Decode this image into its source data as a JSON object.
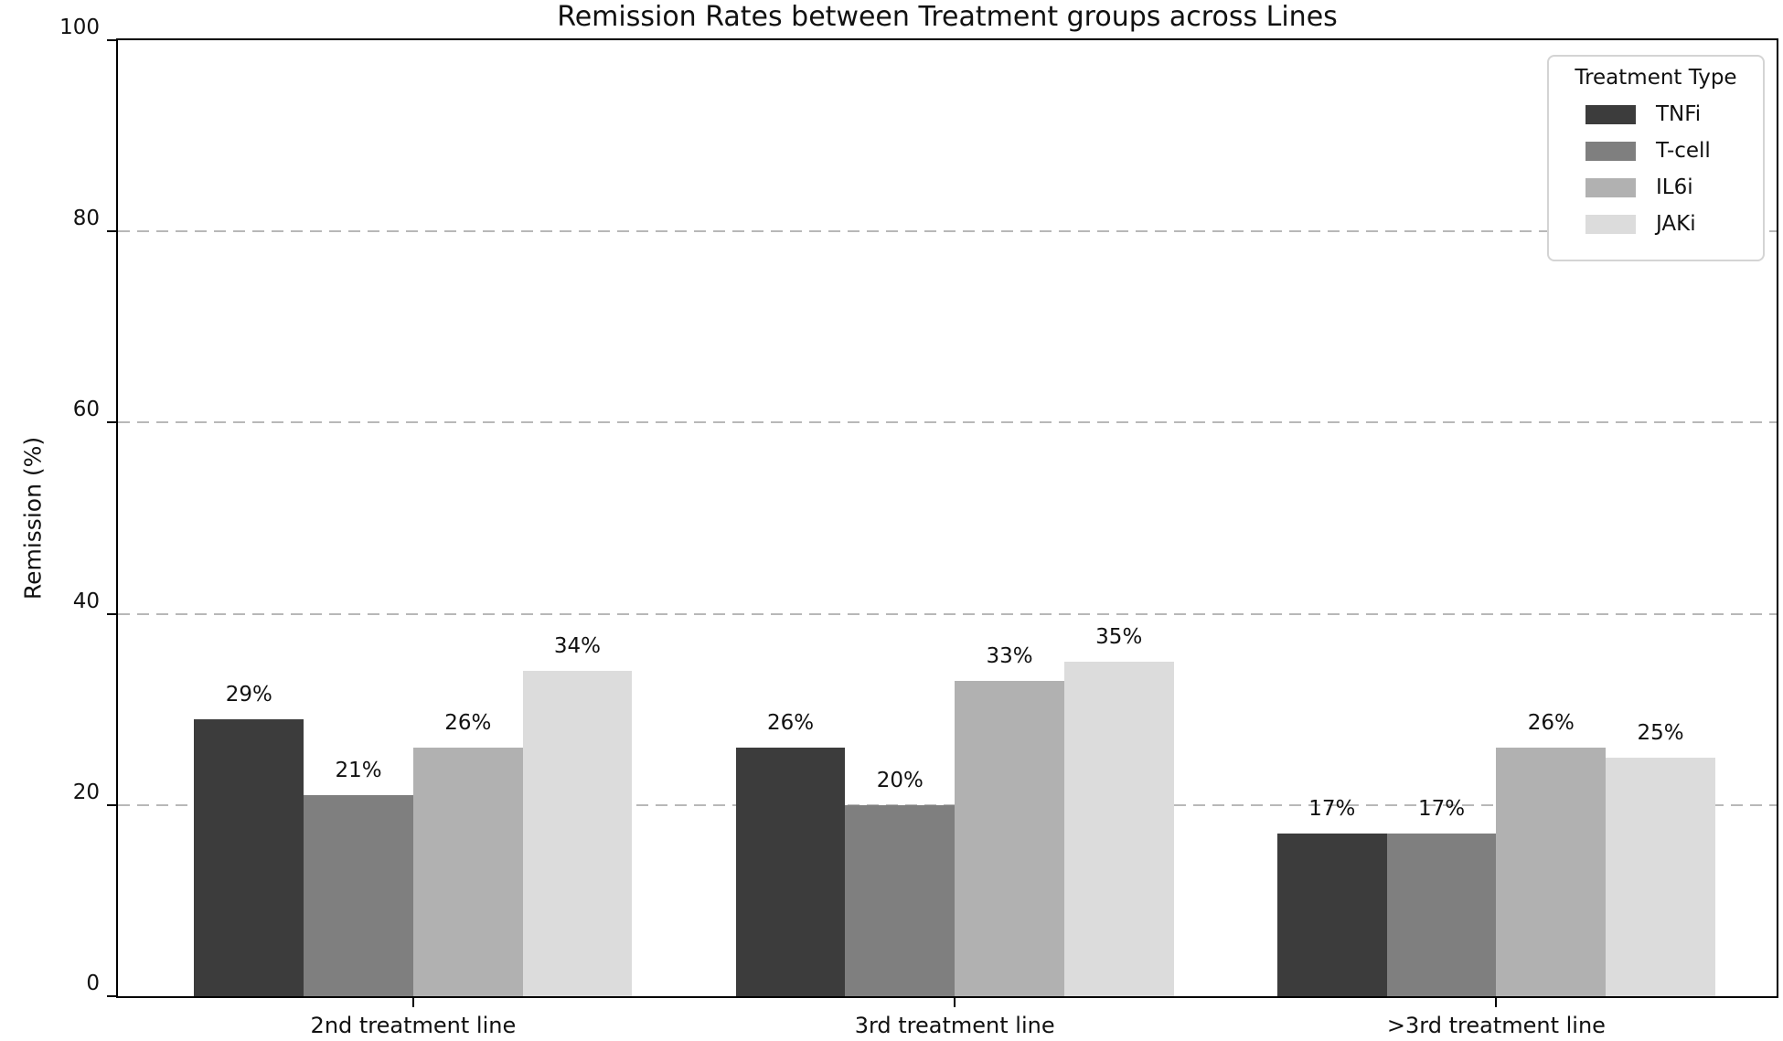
{
  "chart_data": {
    "type": "bar",
    "title": "Remission Rates between Treatment groups across Lines",
    "xlabel": "",
    "ylabel": "Remission (%)",
    "ylim": [
      0,
      100
    ],
    "yticks": [
      0,
      20,
      40,
      60,
      80,
      100
    ],
    "gridlines_at": [
      20,
      40,
      60,
      80
    ],
    "grid_style": "dashed",
    "grid_on": true,
    "categories": [
      "2nd treatment line",
      "3rd treatment line",
      ">3rd treatment line"
    ],
    "series": [
      {
        "name": "TNFi",
        "color": "#3c3c3c",
        "values": [
          29,
          26,
          17
        ],
        "labels": [
          "29%",
          "26%",
          "17%"
        ]
      },
      {
        "name": "T-cell",
        "color": "#7f7f7f",
        "values": [
          21,
          20,
          17
        ],
        "labels": [
          "21%",
          "20%",
          "17%"
        ]
      },
      {
        "name": "IL6i",
        "color": "#b1b1b1",
        "values": [
          26,
          33,
          26
        ],
        "labels": [
          "26%",
          "33%",
          "26%"
        ]
      },
      {
        "name": "JAKi",
        "color": "#dcdcdc",
        "values": [
          34,
          35,
          25
        ],
        "labels": [
          "34%",
          "35%",
          "25%"
        ]
      }
    ],
    "legend": {
      "title": "Treatment Type",
      "position": "upper right"
    },
    "colors": {
      "axis": "#000000",
      "grid": "#b8b8b8",
      "background": "#ffffff",
      "text": "#111111"
    }
  }
}
